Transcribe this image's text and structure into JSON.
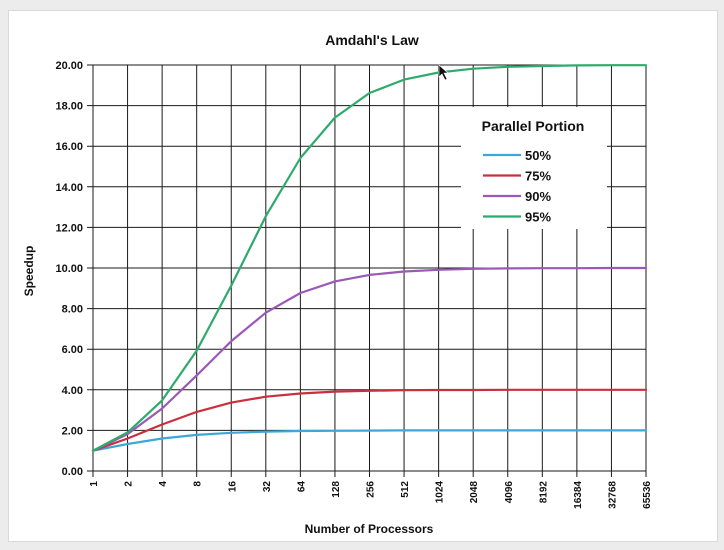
{
  "chart_data": {
    "type": "line",
    "title": "Amdahl's Law",
    "xlabel": "Number of Processors",
    "ylabel": "Speedup",
    "x_scale": "log2",
    "x": [
      1,
      2,
      4,
      8,
      16,
      32,
      64,
      128,
      256,
      512,
      1024,
      2048,
      4096,
      8192,
      16384,
      32768,
      65536
    ],
    "x_tick_labels": [
      "1",
      "2",
      "4",
      "8",
      "16",
      "32",
      "64",
      "128",
      "256",
      "512",
      "1024",
      "2048",
      "4096",
      "8192",
      "16384",
      "32768",
      "65536"
    ],
    "ylim": [
      0,
      20
    ],
    "y_tick_labels": [
      "0.00",
      "2.00",
      "4.00",
      "6.00",
      "8.00",
      "10.00",
      "12.00",
      "14.00",
      "16.00",
      "18.00",
      "20.00"
    ],
    "grid": true,
    "legend_title": "Parallel Portion",
    "legend_position": "top-right",
    "series": [
      {
        "name": "50%",
        "color": "#3fa7d6",
        "values": [
          1.0,
          1.33,
          1.6,
          1.78,
          1.88,
          1.94,
          1.97,
          1.98,
          1.99,
          2.0,
          2.0,
          2.0,
          2.0,
          2.0,
          2.0,
          2.0,
          2.0
        ]
      },
      {
        "name": "75%",
        "color": "#c9303e",
        "values": [
          1.0,
          1.6,
          2.29,
          2.91,
          3.37,
          3.66,
          3.82,
          3.91,
          3.95,
          3.98,
          3.99,
          3.99,
          4.0,
          4.0,
          4.0,
          4.0,
          4.0
        ]
      },
      {
        "name": "90%",
        "color": "#9b59b6",
        "values": [
          1.0,
          1.82,
          3.08,
          4.71,
          6.4,
          7.8,
          8.77,
          9.34,
          9.66,
          9.83,
          9.91,
          9.96,
          9.98,
          9.99,
          9.99,
          10.0,
          10.0
        ]
      },
      {
        "name": "95%",
        "color": "#2eaa6c",
        "values": [
          1.0,
          1.9,
          3.48,
          5.93,
          9.14,
          12.55,
          15.42,
          17.41,
          18.62,
          19.28,
          19.63,
          19.82,
          19.91,
          19.95,
          19.98,
          19.99,
          19.99
        ]
      }
    ]
  }
}
